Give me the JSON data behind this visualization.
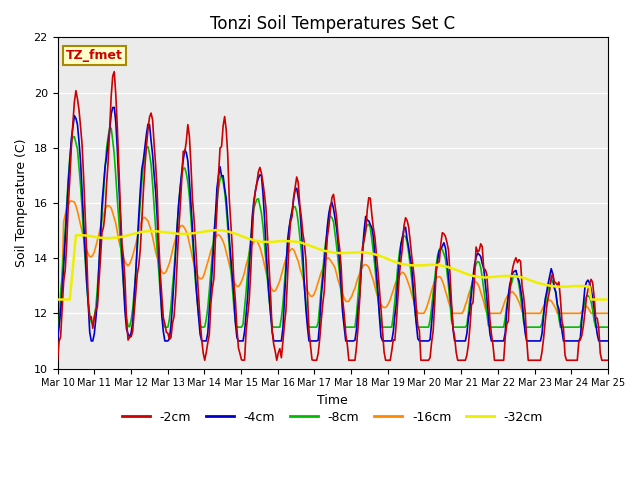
{
  "title": "Tonzi Soil Temperatures Set C",
  "xlabel": "Time",
  "ylabel": "Soil Temperature (C)",
  "ylim": [
    10,
    22
  ],
  "background_color": "#ebebeb",
  "annotation_text": "TZ_fmet",
  "annotation_bg": "#ffffcc",
  "annotation_border": "#aa8800",
  "series": {
    "-2cm": {
      "color": "#cc0000",
      "lw": 1.2
    },
    "-4cm": {
      "color": "#0000cc",
      "lw": 1.2
    },
    "-8cm": {
      "color": "#00bb00",
      "lw": 1.2
    },
    "-16cm": {
      "color": "#ff8800",
      "lw": 1.2
    },
    "-32cm": {
      "color": "#eeee00",
      "lw": 1.8
    }
  },
  "xtick_labels": [
    "Mar 10",
    "Mar 11",
    "Mar 12",
    "Mar 13",
    "Mar 14",
    "Mar 15",
    "Mar 16",
    "Mar 17",
    "Mar 18",
    "Mar 19",
    "Mar 20",
    "Mar 21",
    "Mar 22",
    "Mar 23",
    "Mar 24",
    "Mar 25"
  ],
  "ytick_labels": [
    10,
    12,
    14,
    16,
    18,
    20,
    22
  ],
  "legend_loc": "lower center"
}
